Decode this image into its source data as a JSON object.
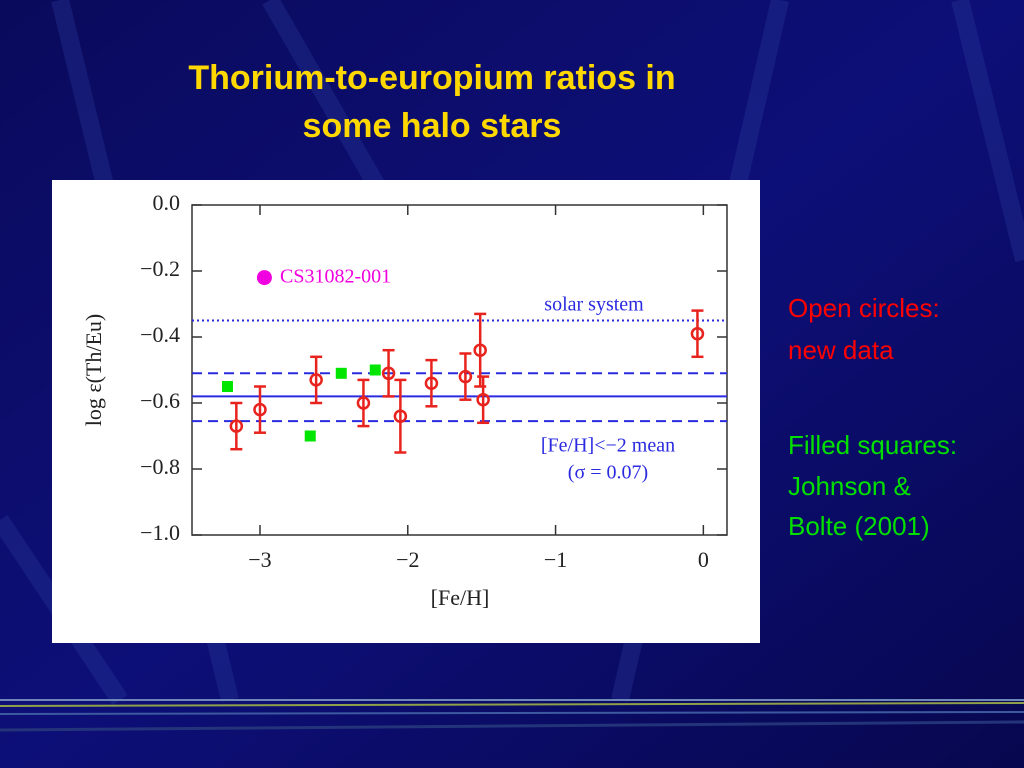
{
  "title": [
    "Thorium-to-europium ratios in",
    "some halo stars"
  ],
  "notes": [
    {
      "lines": [
        "Open circles:",
        "new data"
      ],
      "color": "#ff0000"
    },
    {
      "lines": [
        "Filled squares:",
        "Johnson &",
        "Bolte (2001)"
      ],
      "color": "#00e000"
    }
  ],
  "chart_data": {
    "type": "scatter",
    "x_label": "[Fe/H]",
    "y_label": "log ε(Th/Eu)",
    "xlim": [
      -3.46,
      0.16
    ],
    "ylim": [
      -1.0,
      0.0
    ],
    "xticks": [
      {
        "value": -3,
        "label": "−3"
      },
      {
        "value": -2,
        "label": "−2"
      },
      {
        "value": -1,
        "label": "−1"
      },
      0
    ],
    "yticks": [
      {
        "value": 0,
        "label": "0.0"
      },
      {
        "value": -0.2,
        "label": "−0.2"
      },
      {
        "value": -0.4,
        "label": "−0.4"
      },
      {
        "value": -0.6,
        "label": "−0.6"
      },
      {
        "value": -0.8,
        "label": "−0.8"
      },
      {
        "value": -1.0,
        "label": "−1.0"
      }
    ],
    "series": [
      {
        "marker": "open-circle",
        "color": "#e8231e",
        "x": [
          -3.16,
          -3.0,
          -2.62,
          -2.3,
          -2.13,
          -2.05,
          -1.84,
          -1.61,
          -1.51,
          -1.49,
          -0.04
        ],
        "values": [
          -0.67,
          -0.62,
          -0.53,
          -0.6,
          -0.51,
          -0.64,
          -0.54,
          -0.52,
          -0.44,
          -0.59,
          -0.39
        ],
        "errors": [
          0.07,
          0.07,
          0.07,
          0.07,
          0.07,
          0.11,
          0.07,
          0.07,
          0.11,
          0.07,
          0.07
        ]
      },
      {
        "marker": "square",
        "color": "#00e600",
        "x": [
          -3.22,
          -2.66,
          -2.45,
          -2.22
        ],
        "values": [
          -0.55,
          -0.7,
          -0.51,
          -0.5
        ]
      },
      {
        "marker": "filled-circle",
        "color": "#f000e0",
        "x": [
          -2.97
        ],
        "values": [
          -0.22
        ]
      }
    ],
    "lines": [
      {
        "value": -0.35,
        "style": "dotted",
        "color": "#2a2ae0"
      },
      {
        "value": -0.58,
        "style": "solid",
        "color": "#2a2ae0"
      },
      {
        "value": -0.51,
        "style": "dashed",
        "color": "#2a2ae0"
      },
      {
        "value": -0.655,
        "style": "dashed",
        "color": "#2a2ae0"
      }
    ],
    "annotations": [
      {
        "text": "CS31082-001",
        "color": "#f000e0"
      },
      {
        "text": "solar system",
        "color": "#2a2ae0"
      },
      {
        "text": "[Fe/H]<−2 mean",
        "color": "#2a2ae0"
      },
      {
        "text": "(σ = 0.07)",
        "color": "#2a2ae0"
      }
    ]
  }
}
